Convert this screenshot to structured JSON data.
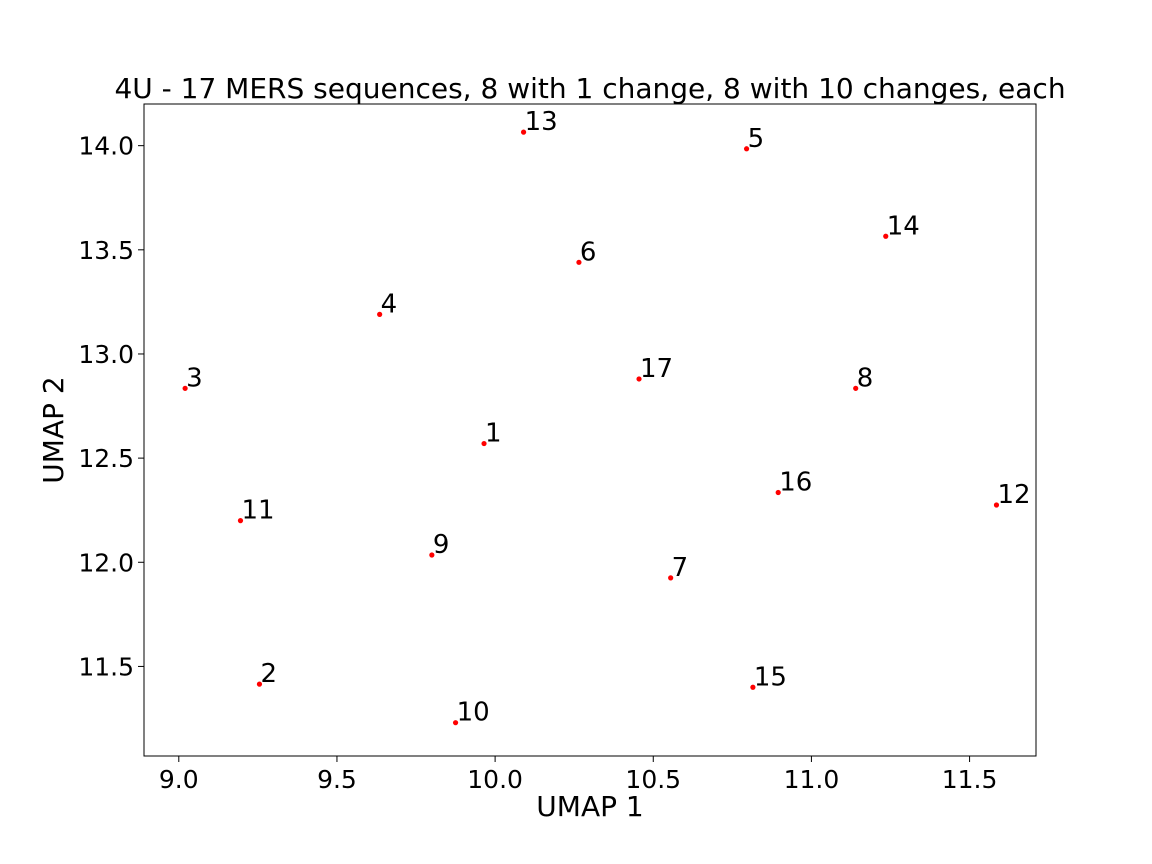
{
  "chart_data": {
    "type": "scatter",
    "title": "4U - 17 MERS sequences, 8 with 1 change, 8 with 10 changes, each",
    "xlabel": "UMAP 1",
    "ylabel": "UMAP 2",
    "xlim": [
      8.89,
      11.71
    ],
    "ylim": [
      11.07,
      14.2
    ],
    "xticks": [
      9.0,
      9.5,
      10.0,
      10.5,
      11.0,
      11.5
    ],
    "xtick_labels": [
      "9.0",
      "9.5",
      "10.0",
      "10.5",
      "11.0",
      "11.5"
    ],
    "yticks": [
      11.5,
      12.0,
      12.5,
      13.0,
      13.5,
      14.0
    ],
    "ytick_labels": [
      "11.5",
      "12.0",
      "12.5",
      "13.0",
      "13.5",
      "14.0"
    ],
    "grid": false,
    "point_color": "#ff0000",
    "points": [
      {
        "label": "1",
        "x": 9.965,
        "y": 12.57
      },
      {
        "label": "2",
        "x": 9.255,
        "y": 11.415
      },
      {
        "label": "3",
        "x": 9.02,
        "y": 12.835
      },
      {
        "label": "4",
        "x": 9.635,
        "y": 13.19
      },
      {
        "label": "5",
        "x": 10.795,
        "y": 13.985
      },
      {
        "label": "6",
        "x": 10.265,
        "y": 13.44
      },
      {
        "label": "7",
        "x": 10.555,
        "y": 11.925
      },
      {
        "label": "8",
        "x": 11.14,
        "y": 12.835
      },
      {
        "label": "9",
        "x": 9.8,
        "y": 12.035
      },
      {
        "label": "10",
        "x": 9.875,
        "y": 11.23
      },
      {
        "label": "11",
        "x": 9.195,
        "y": 12.2
      },
      {
        "label": "12",
        "x": 11.585,
        "y": 12.275
      },
      {
        "label": "13",
        "x": 10.09,
        "y": 14.065
      },
      {
        "label": "14",
        "x": 11.235,
        "y": 13.565
      },
      {
        "label": "15",
        "x": 10.815,
        "y": 11.4
      },
      {
        "label": "16",
        "x": 10.895,
        "y": 12.335
      },
      {
        "label": "17",
        "x": 10.455,
        "y": 12.88
      }
    ]
  }
}
